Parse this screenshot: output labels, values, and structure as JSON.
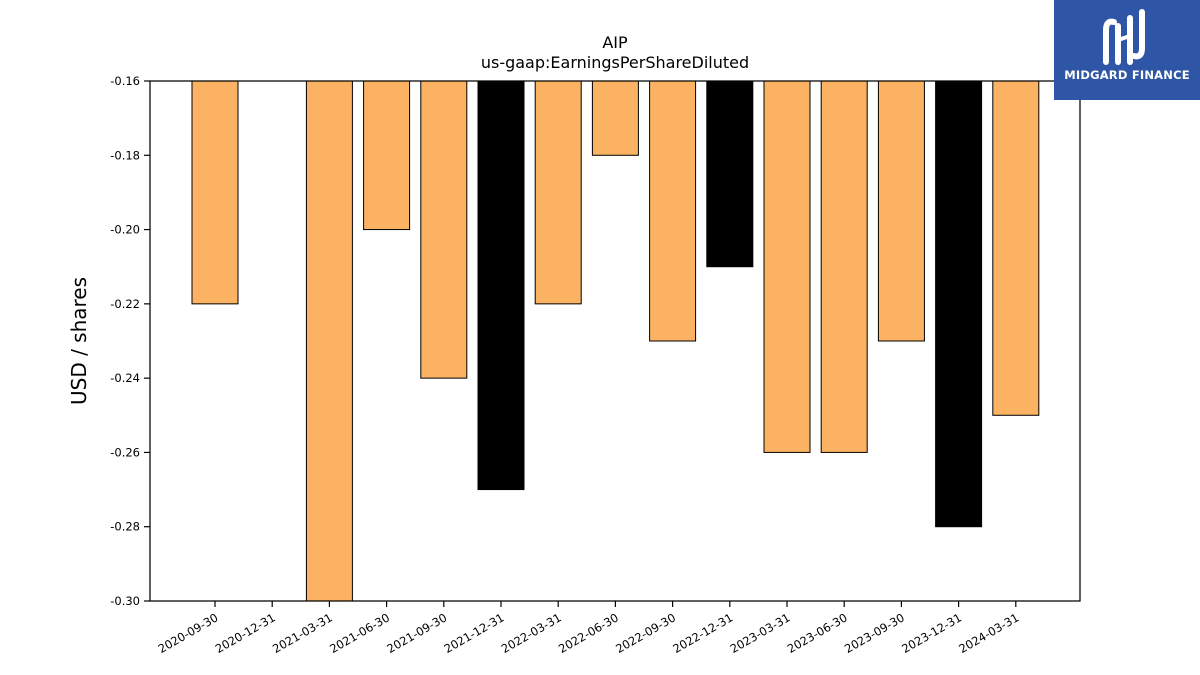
{
  "chart_data": {
    "type": "bar",
    "title": "AIP",
    "subtitle": "us-gaap:EarningsPerShareDiluted",
    "ylabel": "USD / shares",
    "xlabel": "",
    "ylim": [
      -0.3,
      -0.16
    ],
    "yticks": [
      "-0.30",
      "-0.28",
      "-0.26",
      "-0.24",
      "-0.22",
      "-0.20",
      "-0.18",
      "-0.16"
    ],
    "ytick_values": [
      -0.3,
      -0.28,
      -0.26,
      -0.24,
      -0.22,
      -0.2,
      -0.18,
      -0.16
    ],
    "categories": [
      "2020-09-30",
      "2020-12-31",
      "2021-03-31",
      "2021-06-30",
      "2021-09-30",
      "2021-12-31",
      "2022-03-31",
      "2022-06-30",
      "2022-09-30",
      "2022-12-31",
      "2023-03-31",
      "2023-06-30",
      "2023-09-30",
      "2023-12-31",
      "2024-03-31"
    ],
    "values": [
      -0.22,
      null,
      -0.31,
      -0.2,
      -0.24,
      -0.27,
      -0.22,
      -0.18,
      -0.23,
      -0.21,
      -0.26,
      -0.26,
      -0.23,
      -0.28,
      -0.25
    ],
    "bar_colors": [
      "#fbb363",
      null,
      "#fbb363",
      "#fbb363",
      "#fbb363",
      "#000000",
      "#fbb363",
      "#fbb363",
      "#fbb363",
      "#000000",
      "#fbb363",
      "#fbb363",
      "#fbb363",
      "#000000",
      "#fbb363"
    ],
    "grid": false,
    "legend": "none"
  },
  "logo": {
    "text": "MIDGARD FINANCE",
    "background": "#2f56a6",
    "icon": "midgard-logo-icon"
  }
}
